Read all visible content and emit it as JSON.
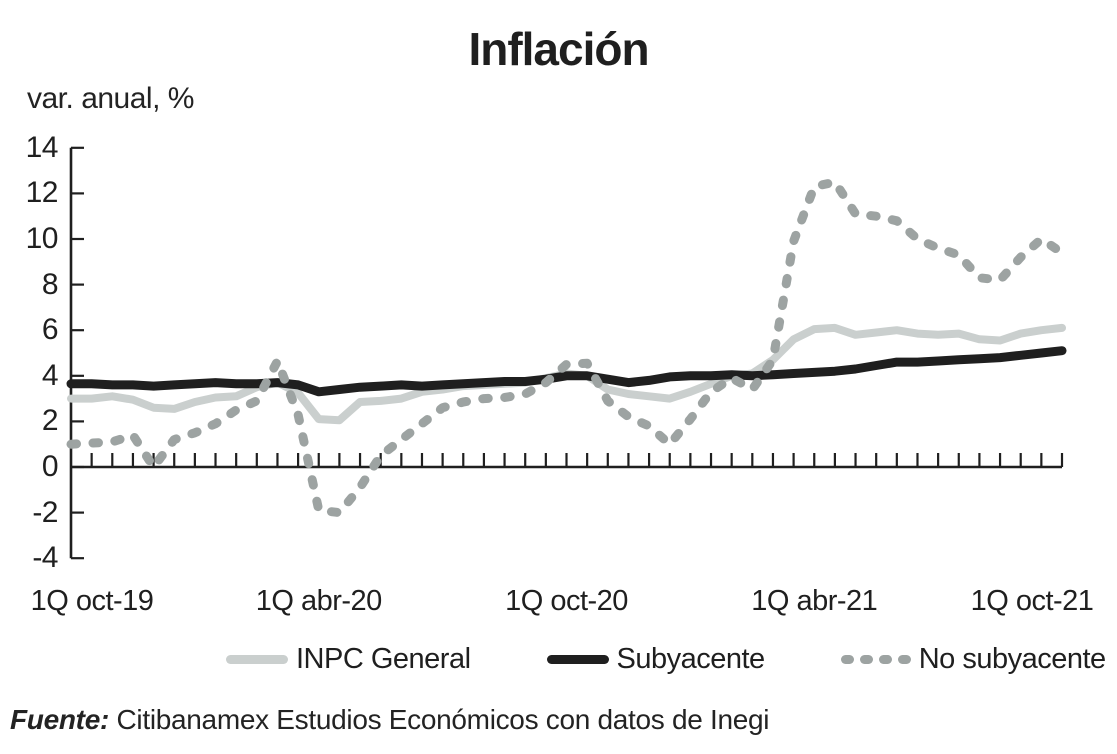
{
  "header": {
    "title": "Inflación",
    "subtitle": "var. anual, %"
  },
  "source": {
    "prefix": "Fuente:",
    "text": " Citibanamex Estudios Económicos con datos de Inegi"
  },
  "chart_data": {
    "type": "line",
    "title": "Inflación",
    "ylabel": "var. anual, %",
    "x_unit": "quincena (biweekly)",
    "grid": false,
    "legend_position": "bottom",
    "ylim": [
      -4,
      14
    ],
    "y_ticks": [
      14,
      12,
      10,
      8,
      6,
      4,
      2,
      0,
      -2,
      -4
    ],
    "x_tick_labels": [
      "1Q oct-19",
      "1Q abr-20",
      "1Q oct-20",
      "1Q abr-21",
      "1Q oct-21"
    ],
    "x_tick_label_positions": [
      0,
      12,
      24,
      36,
      48
    ],
    "x": [
      "1Q oct-19",
      "2Q oct-19",
      "1Q nov-19",
      "2Q nov-19",
      "1Q dic-19",
      "2Q dic-19",
      "1Q ene-20",
      "2Q ene-20",
      "1Q feb-20",
      "2Q feb-20",
      "1Q mar-20",
      "2Q mar-20",
      "1Q abr-20",
      "2Q abr-20",
      "1Q may-20",
      "2Q may-20",
      "1Q jun-20",
      "2Q jun-20",
      "1Q jul-20",
      "2Q jul-20",
      "1Q ago-20",
      "2Q ago-20",
      "1Q sep-20",
      "2Q sep-20",
      "1Q oct-20",
      "2Q oct-20",
      "1Q nov-20",
      "2Q nov-20",
      "1Q dic-20",
      "2Q dic-20",
      "1Q ene-21",
      "2Q ene-21",
      "1Q feb-21",
      "2Q feb-21",
      "1Q mar-21",
      "2Q mar-21",
      "1Q abr-21",
      "2Q abr-21",
      "1Q may-21",
      "2Q may-21",
      "1Q jun-21",
      "2Q jun-21",
      "1Q jul-21",
      "2Q jul-21",
      "1Q ago-21",
      "2Q ago-21",
      "1Q sep-21",
      "2Q sep-21",
      "1Q oct-21"
    ],
    "series": [
      {
        "name": "INPC General",
        "style": "solid",
        "color": "#cacfce",
        "width": 8,
        "values": [
          3.0,
          3.0,
          3.1,
          2.95,
          2.6,
          2.55,
          2.85,
          3.05,
          3.1,
          3.5,
          3.7,
          3.25,
          2.1,
          2.05,
          2.85,
          2.9,
          3.0,
          3.3,
          3.4,
          3.55,
          3.6,
          3.65,
          3.7,
          3.9,
          4.1,
          4.0,
          3.4,
          3.2,
          3.1,
          3.0,
          3.3,
          3.65,
          4.0,
          4.1,
          4.7,
          5.6,
          6.05,
          6.1,
          5.8,
          5.9,
          6.0,
          5.85,
          5.8,
          5.85,
          5.6,
          5.55,
          5.85,
          6.0,
          6.1
        ]
      },
      {
        "name": "Subyacente",
        "style": "solid",
        "color": "#1f1f1f",
        "width": 9,
        "values": [
          3.65,
          3.65,
          3.6,
          3.6,
          3.55,
          3.6,
          3.65,
          3.7,
          3.65,
          3.65,
          3.7,
          3.6,
          3.3,
          3.4,
          3.5,
          3.55,
          3.6,
          3.55,
          3.6,
          3.65,
          3.7,
          3.75,
          3.75,
          3.85,
          4.0,
          4.0,
          3.85,
          3.7,
          3.8,
          3.95,
          4.0,
          4.0,
          4.05,
          4.0,
          4.05,
          4.1,
          4.15,
          4.2,
          4.3,
          4.45,
          4.6,
          4.6,
          4.65,
          4.7,
          4.75,
          4.8,
          4.9,
          5.0,
          5.1
        ]
      },
      {
        "name": "No subyacente",
        "style": "dashed",
        "color": "#9da3a2",
        "width": 9,
        "values": [
          1.0,
          1.05,
          1.1,
          1.4,
          0.0,
          1.2,
          1.5,
          1.9,
          2.5,
          2.9,
          4.65,
          2.3,
          -1.9,
          -2.0,
          -0.9,
          0.5,
          1.2,
          1.9,
          2.6,
          2.85,
          3.0,
          3.05,
          3.2,
          3.7,
          4.5,
          4.55,
          2.9,
          2.2,
          1.8,
          1.0,
          2.1,
          3.3,
          3.9,
          3.4,
          4.7,
          9.9,
          12.3,
          12.5,
          11.1,
          11.0,
          10.8,
          10.0,
          9.6,
          9.3,
          8.3,
          8.2,
          9.2,
          10.0,
          9.4
        ]
      }
    ]
  }
}
